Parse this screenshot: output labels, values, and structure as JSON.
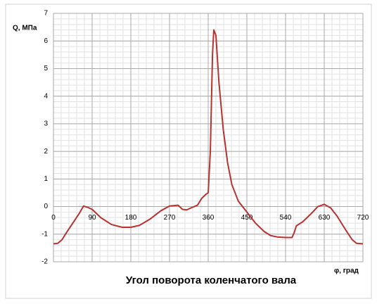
{
  "chart_data": {
    "type": "line",
    "x_label": "Угол поворота коленчатого вала",
    "y_axis_title": "Q, МПа",
    "x_axis_title": "φ, град",
    "x": [
      0,
      10,
      20,
      30,
      45,
      60,
      70,
      80,
      90,
      110,
      135,
      160,
      180,
      200,
      225,
      250,
      270,
      290,
      300,
      310,
      320,
      335,
      345,
      355,
      360,
      365,
      370,
      373,
      378,
      385,
      395,
      405,
      415,
      430,
      450,
      470,
      490,
      505,
      520,
      540,
      555,
      560,
      565,
      580,
      600,
      615,
      630,
      645,
      660,
      680,
      695,
      705,
      720
    ],
    "series": [
      {
        "name": "Q",
        "color": "#b83232",
        "values": [
          -1.35,
          -1.33,
          -1.2,
          -0.95,
          -0.6,
          -0.25,
          0.02,
          -0.03,
          -0.1,
          -0.4,
          -0.65,
          -0.75,
          -0.75,
          -0.68,
          -0.45,
          -0.15,
          0.02,
          0.05,
          -0.1,
          -0.12,
          -0.05,
          0.05,
          0.3,
          0.45,
          0.5,
          2,
          5.5,
          6.4,
          6.2,
          4.5,
          2.8,
          1.6,
          0.8,
          0.2,
          -0.2,
          -0.6,
          -0.9,
          -1.05,
          -1.1,
          -1.12,
          -1.12,
          -0.95,
          -0.7,
          -0.55,
          -0.25,
          0,
          0.08,
          -0.05,
          -0.35,
          -0.85,
          -1.2,
          -1.33,
          -1.35
        ]
      }
    ],
    "xlim": [
      0,
      720
    ],
    "xticks": [
      0,
      90,
      180,
      270,
      360,
      450,
      540,
      630,
      720
    ],
    "ylim": [
      -2,
      7
    ],
    "yticks": [
      -2,
      -1,
      0,
      1,
      2,
      3,
      4,
      5,
      6,
      7
    ],
    "grid": true,
    "minor_x_step": 18,
    "minor_y_step": 0.2
  }
}
